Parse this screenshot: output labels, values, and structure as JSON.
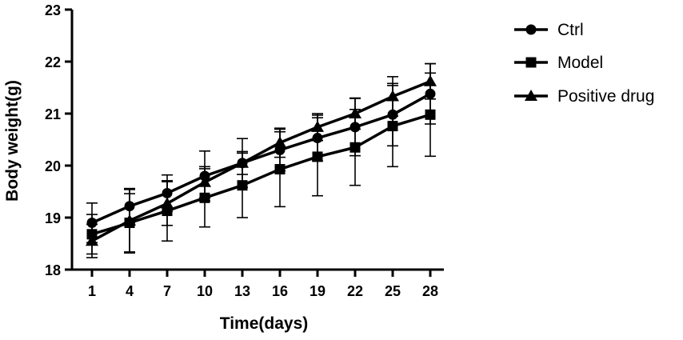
{
  "chart_data": {
    "type": "line",
    "xlabel": "Time(days)",
    "ylabel": "Body weight(g)",
    "x": [
      1,
      4,
      7,
      10,
      13,
      16,
      19,
      22,
      25,
      28
    ],
    "xticks": [
      "1",
      "4",
      "7",
      "10",
      "13",
      "16",
      "19",
      "22",
      "25",
      "28"
    ],
    "ylim": [
      18,
      23
    ],
    "yticks": [
      "18",
      "19",
      "20",
      "21",
      "22",
      "23"
    ],
    "grid": false,
    "legend_position": "top-right",
    "series": [
      {
        "name": "Ctrl",
        "marker": "circle",
        "values": [
          18.9,
          19.22,
          19.47,
          19.8,
          20.05,
          20.3,
          20.53,
          20.74,
          20.98,
          21.38
        ],
        "errors": [
          0.38,
          0.32,
          0.35,
          0.48,
          0.47,
          0.4,
          0.44,
          0.55,
          0.6,
          0.58
        ]
      },
      {
        "name": "Model",
        "marker": "square",
        "values": [
          18.68,
          18.9,
          19.13,
          19.38,
          19.62,
          19.93,
          20.17,
          20.35,
          20.76,
          20.98
        ],
        "errors": [
          0.38,
          0.56,
          0.58,
          0.56,
          0.62,
          0.72,
          0.75,
          0.73,
          0.78,
          0.8
        ]
      },
      {
        "name": "Positive drug",
        "marker": "triangle",
        "values": [
          18.55,
          18.94,
          19.27,
          19.68,
          20.05,
          20.44,
          20.74,
          21.0,
          21.33,
          21.62
        ],
        "errors": [
          0.32,
          0.62,
          0.42,
          0.3,
          0.22,
          0.28,
          0.26,
          0.3,
          0.38,
          0.34
        ]
      }
    ]
  }
}
